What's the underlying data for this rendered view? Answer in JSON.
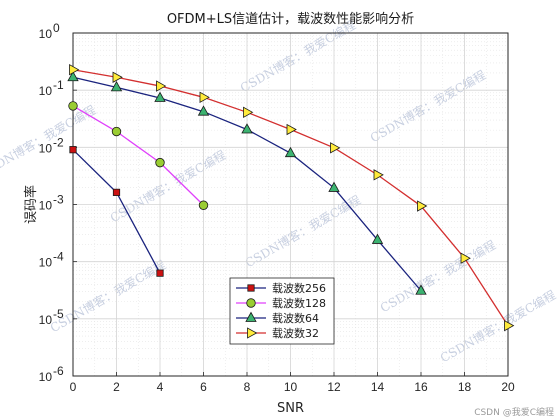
{
  "chart_data": {
    "type": "line",
    "title": "OFDM+LS信道估计，载波数性能影响分析",
    "xlabel": "SNR",
    "ylabel": "误码率",
    "xlim": [
      0,
      20
    ],
    "ylim": [
      1e-06,
      1
    ],
    "yscale": "log",
    "grid": true,
    "legend_position": "bottom-center",
    "xticks": [
      "0",
      "2",
      "4",
      "6",
      "8",
      "10",
      "12",
      "14",
      "16",
      "18",
      "20"
    ],
    "yticks": [
      "10",
      "10",
      "10",
      "10",
      "10",
      "10",
      "10"
    ],
    "ytick_exponents": [
      "0",
      "-1",
      "-2",
      "-3",
      "-4",
      "-5",
      "-6"
    ],
    "series": [
      {
        "name": "载波数256",
        "color": "#1a237e",
        "marker": "square",
        "marker_color": "#cc1111",
        "x": [
          0,
          2,
          4
        ],
        "y": [
          0.0091,
          0.00163,
          6.3e-05
        ]
      },
      {
        "name": "载波数128",
        "color": "#e040fb",
        "marker": "circle",
        "marker_color": "#9acd32",
        "x": [
          0,
          2,
          4,
          6
        ],
        "y": [
          0.053,
          0.0189,
          0.0054,
          0.00097
        ]
      },
      {
        "name": "载波数64",
        "color": "#1a237e",
        "marker": "triangle",
        "marker_color": "#3cb371",
        "x": [
          0,
          2,
          4,
          6,
          8,
          10,
          12,
          14,
          16
        ],
        "y": [
          0.168,
          0.112,
          0.073,
          0.042,
          0.0205,
          0.0079,
          0.00195,
          0.00024,
          3.1e-05
        ]
      },
      {
        "name": "载波数32",
        "color": "#d32f2f",
        "marker": "triangle-right",
        "marker_color": "#ffeb3b",
        "x": [
          0,
          2,
          4,
          6,
          8,
          10,
          12,
          14,
          16,
          18,
          20
        ],
        "y": [
          0.228,
          0.168,
          0.118,
          0.075,
          0.041,
          0.0205,
          0.0098,
          0.0033,
          0.00094,
          0.000115,
          7.6e-06
        ]
      }
    ]
  },
  "watermark": "CSDN博客：我爱C编程",
  "footer": "CSDN @我爱C编程"
}
